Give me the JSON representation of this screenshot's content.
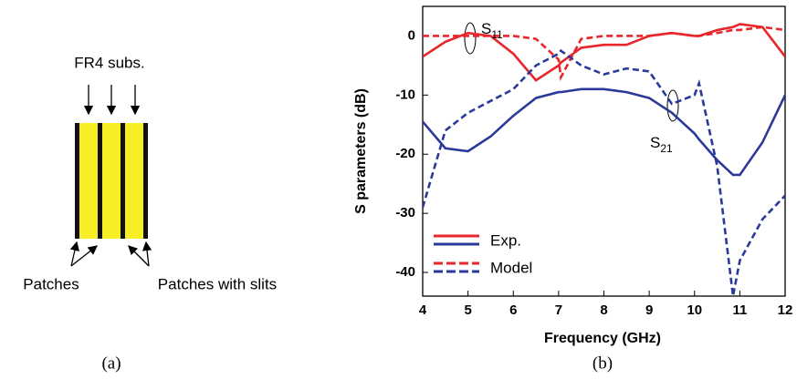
{
  "diagram": {
    "top_label": "FR4 subs.",
    "left_label": "Patches",
    "right_label": "Patches with slits",
    "caption": "(a)"
  },
  "chart_data": {
    "type": "line",
    "caption": "(b)",
    "x_label": "Frequency (GHz)",
    "y_label": "S parameters (dB)",
    "x": [
      4,
      4.5,
      5,
      5.5,
      6,
      6.5,
      7,
      7.05,
      7.5,
      8,
      8.5,
      9,
      9.5,
      10,
      10.1,
      10.5,
      10.85,
      11,
      11.5,
      12
    ],
    "series": [
      {
        "name": "Exp.",
        "dash": false,
        "traces": [
          {
            "color": "#e8262b",
            "values": [
              -3.5,
              -1,
              0.5,
              0,
              -3,
              -7.5,
              -5,
              -4.5,
              -2,
              -1.5,
              -1.5,
              0,
              0.5,
              0,
              0,
              1,
              1.5,
              2,
              1.5,
              -3.5
            ]
          },
          {
            "color": "#2b3a9a",
            "values": [
              -14.5,
              -19,
              -19.5,
              -17,
              -13.5,
              -10.5,
              -9.5,
              -9.5,
              -9,
              -9,
              -9.5,
              -10.5,
              -13,
              -16.5,
              -17.5,
              -21,
              -23.5,
              -23.5,
              -18,
              -10
            ]
          }
        ]
      },
      {
        "name": "Model",
        "dash": true,
        "traces": [
          {
            "color": "#e8262b",
            "values": [
              0,
              0,
              0,
              0,
              0,
              -0.5,
              -4,
              -7,
              -0.5,
              0,
              0,
              0,
              0.5,
              0,
              0,
              0.5,
              1,
              1,
              1.5,
              1
            ]
          },
          {
            "color": "#2b3a9a",
            "values": [
              -29,
              -16,
              -13,
              -11,
              -9,
              -5,
              -3,
              -2.5,
              -5,
              -6.5,
              -5.5,
              -6,
              -11.5,
              -10,
              -8,
              -22,
              -44,
              -38,
              -31,
              -27
            ]
          }
        ]
      }
    ],
    "annotations": [
      {
        "text": "S",
        "sub": "11"
      },
      {
        "text": "S",
        "sub": "21"
      }
    ],
    "xlim": [
      4,
      12
    ],
    "ylim": [
      -44,
      5
    ],
    "xticks": [
      4,
      5,
      6,
      7,
      8,
      9,
      10,
      11,
      12
    ],
    "yticks": [
      0,
      -10,
      -20,
      -30,
      -40
    ],
    "legend": "lower-left"
  }
}
